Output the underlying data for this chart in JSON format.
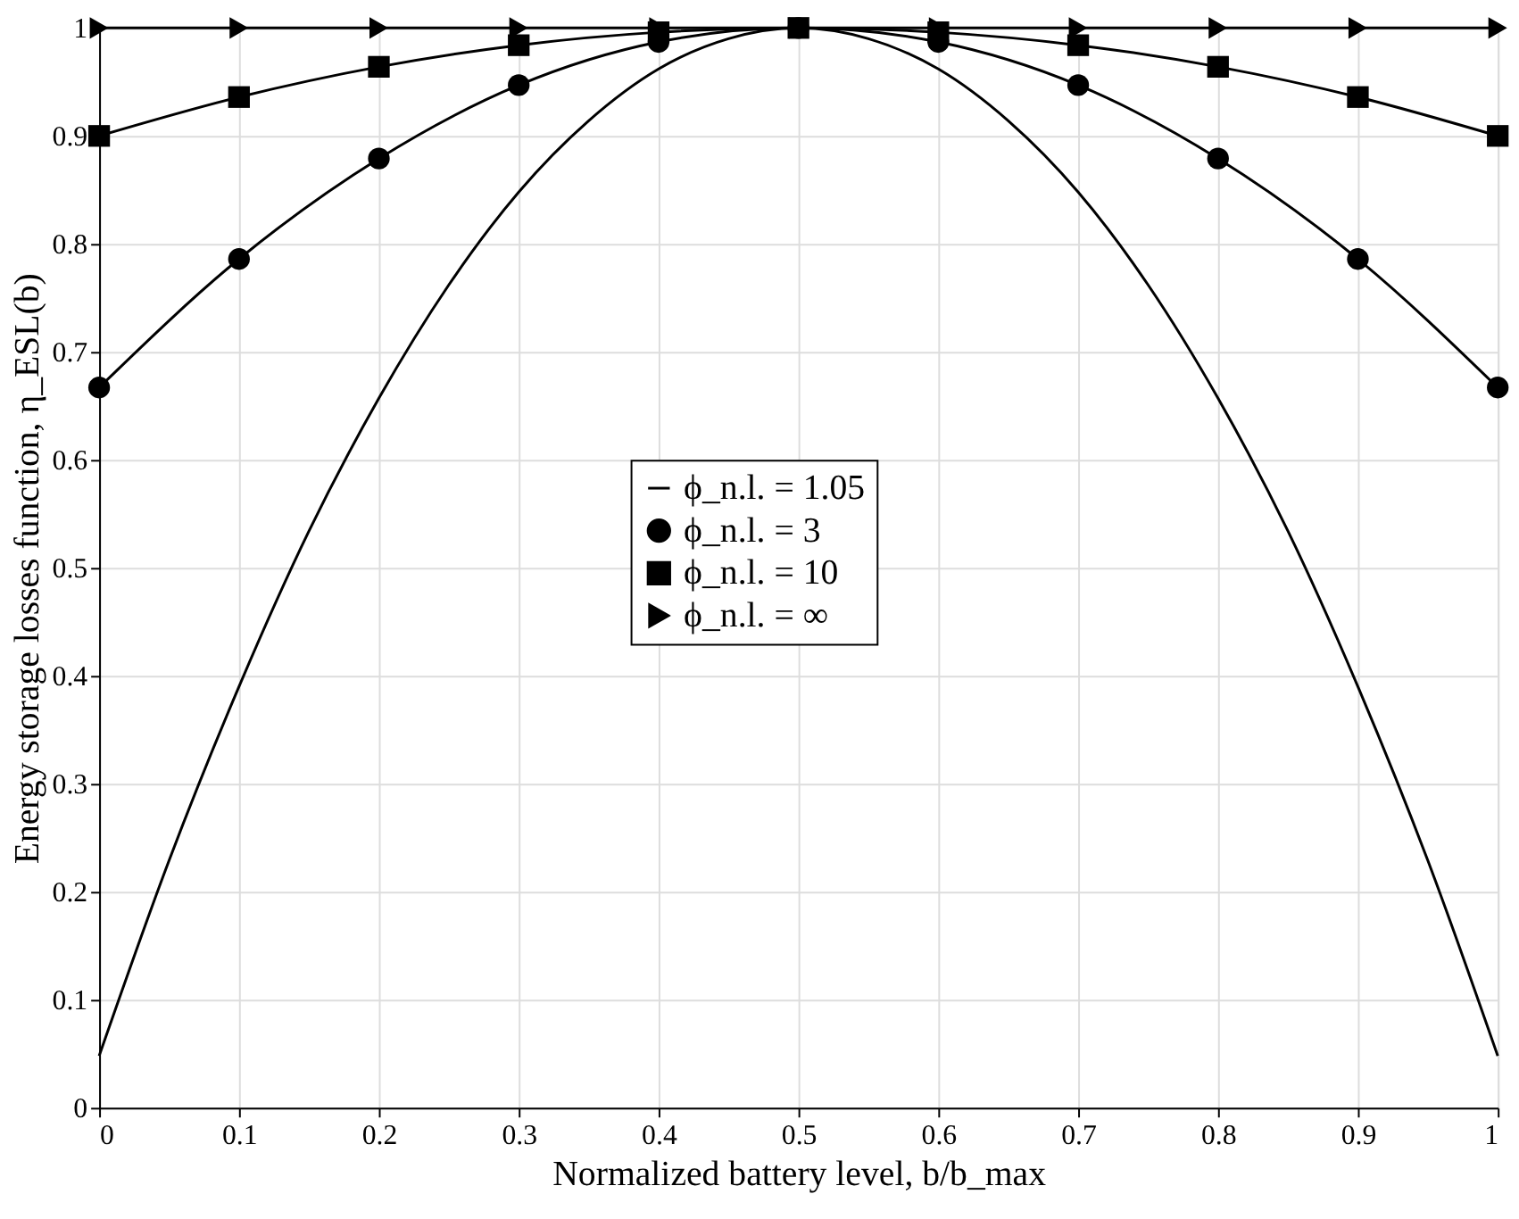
{
  "chart_data": {
    "type": "line",
    "xlabel": "Normalized battery level, b/b_max",
    "ylabel": "Energy storage losses function, η_ESL(b)",
    "xlim": [
      0,
      1
    ],
    "xticks": [
      0,
      0.1,
      0.2,
      0.3,
      0.4,
      0.5,
      0.6,
      0.7,
      0.8,
      0.9,
      1
    ],
    "ylim": [
      0,
      1
    ],
    "yticks": [
      0,
      0.1,
      0.2,
      0.3,
      0.4,
      0.5,
      0.6,
      0.7,
      0.8,
      0.9,
      1
    ],
    "grid": true,
    "legend": "center",
    "line_style": "solid",
    "series": [
      {
        "name": "ϕ_n.l. = 1.05",
        "color": "#000000",
        "marker": "none",
        "x": [
          0,
          0.05,
          0.1,
          0.15,
          0.2,
          0.25,
          0.3,
          0.35,
          0.4,
          0.45,
          0.5,
          0.55,
          0.6,
          0.65,
          0.7,
          0.75,
          0.8,
          0.85,
          0.9,
          0.95,
          1
        ],
        "values": [
          0.048,
          0.229,
          0.39,
          0.534,
          0.657,
          0.762,
          0.848,
          0.914,
          0.962,
          0.99,
          1,
          0.99,
          0.962,
          0.914,
          0.848,
          0.762,
          0.657,
          0.534,
          0.39,
          0.229,
          0.048
        ]
      },
      {
        "name": "ϕ_n.l. = 3",
        "color": "#000000",
        "marker": "circle",
        "x": [
          0,
          0.1,
          0.2,
          0.3,
          0.4,
          0.5,
          0.6,
          0.7,
          0.8,
          0.9,
          1
        ],
        "values": [
          0.667,
          0.786,
          0.879,
          0.947,
          0.987,
          1,
          0.987,
          0.947,
          0.879,
          0.786,
          0.667
        ]
      },
      {
        "name": "ϕ_n.l. = 10",
        "color": "#000000",
        "marker": "square",
        "x": [
          0,
          0.1,
          0.2,
          0.3,
          0.4,
          0.5,
          0.6,
          0.7,
          0.8,
          0.9,
          1
        ],
        "values": [
          0.9,
          0.936,
          0.964,
          0.984,
          0.996,
          1,
          0.996,
          0.984,
          0.964,
          0.936,
          0.9
        ]
      },
      {
        "name": "ϕ_n.l. = ∞",
        "color": "#000000",
        "marker": "triangle",
        "x": [
          0,
          0.1,
          0.2,
          0.3,
          0.4,
          0.5,
          0.6,
          0.7,
          0.8,
          0.9,
          1
        ],
        "values": [
          1,
          1,
          1,
          1,
          1,
          1,
          1,
          1,
          1,
          1,
          1
        ]
      }
    ]
  }
}
